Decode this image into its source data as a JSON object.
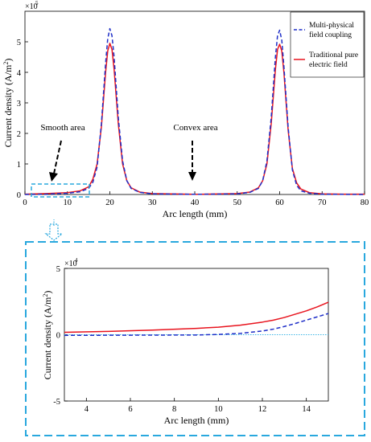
{
  "chart_data": [
    {
      "type": "line",
      "title": "",
      "xlabel": "Arc length (mm)",
      "ylabel": "Current density (A/m",
      "ylabel_sup": "2",
      "ylabel_close": ")",
      "y_exponent_base": "×10",
      "y_exponent": "5",
      "xlim": [
        0,
        80
      ],
      "ylim": [
        0,
        6
      ],
      "x_ticks": [
        "0",
        "10",
        "20",
        "30",
        "40",
        "50",
        "60",
        "70",
        "80"
      ],
      "y_ticks": [
        "0",
        "1",
        "2",
        "3",
        "4",
        "5"
      ],
      "grid": false,
      "legend_position": "top-right",
      "series": [
        {
          "name": "Multi-physical field coupling",
          "style": "dashed",
          "color": "#1f2fc8",
          "x": [
            0,
            5,
            10,
            13,
            15,
            16,
            17,
            18,
            19,
            19.5,
            20,
            20.5,
            21,
            22,
            23,
            24,
            25,
            27,
            30,
            40,
            50,
            53,
            55,
            56,
            57,
            58,
            59,
            59.5,
            60,
            60.5,
            61,
            62,
            63,
            64,
            65,
            67,
            70,
            75,
            80
          ],
          "y": [
            0,
            0.01,
            0.04,
            0.09,
            0.2,
            0.4,
            0.9,
            2.3,
            4.3,
            5.1,
            5.43,
            5.2,
            4.5,
            2.5,
            1.1,
            0.45,
            0.2,
            0.07,
            0.02,
            0.005,
            0.02,
            0.07,
            0.2,
            0.45,
            1.1,
            2.5,
            4.5,
            5.2,
            5.38,
            5.05,
            4.2,
            2.2,
            0.8,
            0.3,
            0.12,
            0.04,
            0.01,
            0.005,
            0
          ]
        },
        {
          "name": "Traditional pure electric field",
          "style": "solid",
          "color": "#e8141e",
          "x": [
            0,
            5,
            10,
            13,
            15,
            16,
            17,
            18,
            19,
            19.5,
            20,
            20.5,
            21,
            22,
            23,
            24,
            25,
            27,
            30,
            40,
            50,
            53,
            55,
            56,
            57,
            58,
            59,
            59.5,
            60,
            60.5,
            61,
            62,
            63,
            64,
            65,
            67,
            70,
            75,
            80
          ],
          "y": [
            0.01,
            0.03,
            0.06,
            0.12,
            0.25,
            0.5,
            1.0,
            2.2,
            4.0,
            4.7,
            4.95,
            4.75,
            4.1,
            2.3,
            1.0,
            0.45,
            0.22,
            0.08,
            0.03,
            0.005,
            0.03,
            0.08,
            0.22,
            0.45,
            1.0,
            2.3,
            4.1,
            4.75,
            4.92,
            4.7,
            4.0,
            2.1,
            0.85,
            0.38,
            0.18,
            0.06,
            0.02,
            0.01,
            0.01
          ]
        }
      ],
      "annotations": [
        {
          "name": "smooth-area",
          "text": "Smooth area",
          "x": 10,
          "y": 1.5
        },
        {
          "name": "convex-area",
          "text": "Convex area",
          "x": 40,
          "y": 1.5
        }
      ]
    },
    {
      "type": "line",
      "title": "",
      "xlabel": "Arc length (mm)",
      "ylabel": "Current density (A/m",
      "ylabel_sup": "2",
      "ylabel_close": ")",
      "y_exponent_base": "×10",
      "y_exponent": "4",
      "xlim": [
        3,
        15
      ],
      "ylim": [
        -5,
        5
      ],
      "x_ticks": [
        "4",
        "6",
        "8",
        "10",
        "12",
        "14"
      ],
      "y_ticks": [
        "-5",
        "0",
        "5"
      ],
      "grid": false,
      "series": [
        {
          "name": "Multi-physical field coupling",
          "style": "dashed",
          "color": "#1f2fc8",
          "x": [
            3,
            5,
            7,
            9,
            10,
            11,
            12,
            12.5,
            13,
            13.5,
            14,
            14.5,
            15
          ],
          "y": [
            -0.05,
            -0.04,
            -0.03,
            -0.02,
            0.02,
            0.1,
            0.28,
            0.42,
            0.62,
            0.85,
            1.1,
            1.35,
            1.6
          ]
        },
        {
          "name": "Traditional pure electric field",
          "style": "solid",
          "color": "#e8141e",
          "x": [
            3,
            5,
            7,
            9,
            10,
            11,
            12,
            12.5,
            13,
            13.5,
            14,
            14.5,
            15
          ],
          "y": [
            0.18,
            0.25,
            0.35,
            0.48,
            0.57,
            0.72,
            0.95,
            1.1,
            1.3,
            1.55,
            1.8,
            2.1,
            2.45
          ]
        },
        {
          "name": "zero-reference",
          "style": "dotted",
          "color": "#3fb6e6",
          "x": [
            3,
            15
          ],
          "y": [
            0,
            0
          ]
        }
      ]
    }
  ],
  "legend": {
    "items": [
      {
        "line1": "Multi-physical",
        "line2": "field coupling"
      },
      {
        "line1": "Traditional pure",
        "line2": "electric field"
      }
    ]
  },
  "colors": {
    "highlight": "#29a8de"
  }
}
